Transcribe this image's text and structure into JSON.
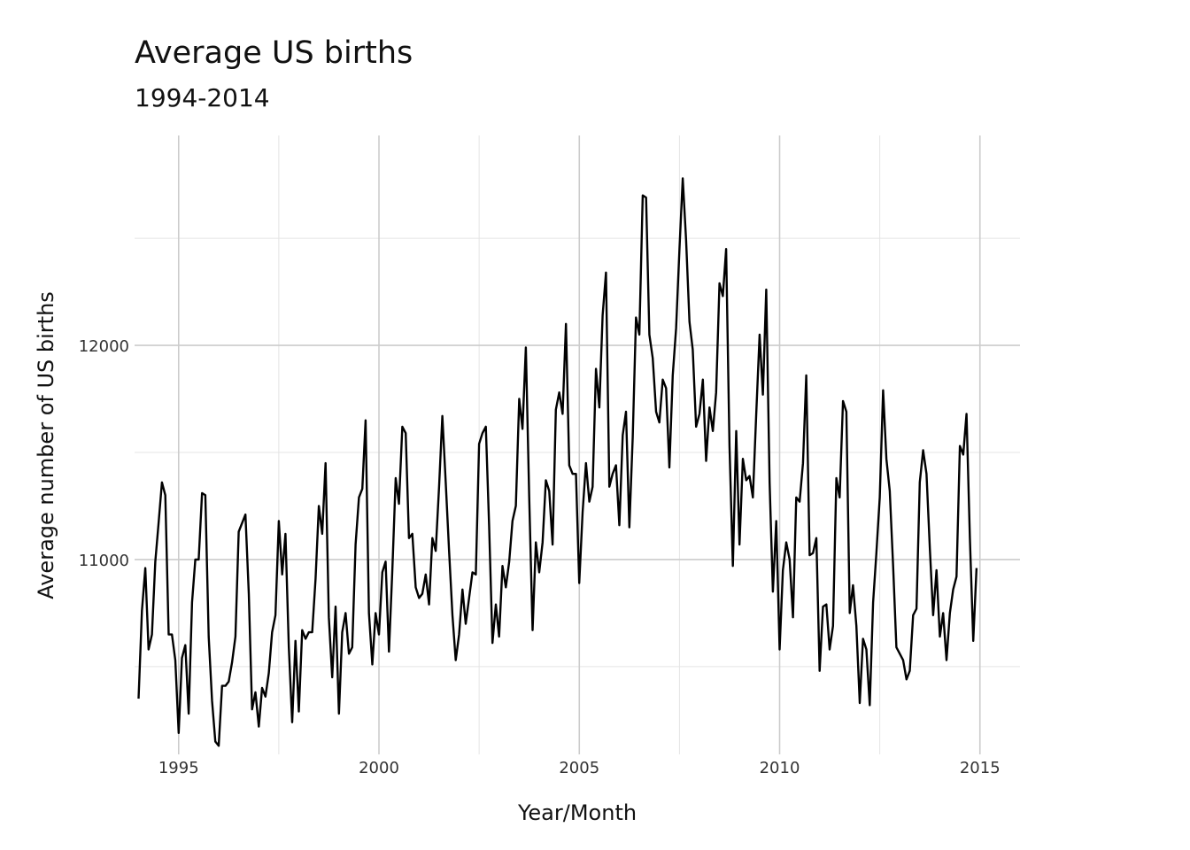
{
  "chart_data": {
    "type": "line",
    "title": "Average US births",
    "subtitle": "1994-2014",
    "xlabel": "Year/Month",
    "ylabel": "Average number of US births",
    "xlim": [
      1993.9,
      2016.0
    ],
    "ylim": [
      10090,
      12980
    ],
    "x_ticks": [
      1995,
      2000,
      2005,
      2010,
      2015
    ],
    "x_tick_labels": [
      "1995",
      "2000",
      "2005",
      "2010",
      "2015"
    ],
    "y_ticks": [
      11000,
      12000
    ],
    "y_tick_labels": [
      "11000",
      "12000"
    ],
    "y_minor_ticks": [
      10500,
      11500,
      12500
    ],
    "grid": true,
    "legend": "none",
    "line_color": "#000000",
    "series": [
      {
        "x_start": 1994.0,
        "x_step": 0.08333,
        "values": [
          10350,
          10760,
          10960,
          10580,
          10650,
          10990,
          11170,
          11360,
          11300,
          10650,
          10650,
          10530,
          10190,
          10540,
          10600,
          10280,
          10800,
          11000,
          11000,
          11310,
          11300,
          10640,
          10340,
          10150,
          10130,
          10410,
          10410,
          10430,
          10520,
          10640,
          11130,
          11170,
          11210,
          10840,
          10300,
          10380,
          10220,
          10400,
          10360,
          10470,
          10660,
          10740,
          11180,
          10930,
          11120,
          10590,
          10240,
          10620,
          10290,
          10670,
          10630,
          10660,
          10660,
          10910,
          11250,
          11120,
          11450,
          10730,
          10450,
          10780,
          10280,
          10660,
          10750,
          10560,
          10590,
          11070,
          11290,
          11330,
          11650,
          10750,
          10510,
          10750,
          10650,
          10940,
          10990,
          10570,
          10950,
          11380,
          11260,
          11620,
          11590,
          11100,
          11120,
          10870,
          10820,
          10840,
          10930,
          10790,
          11100,
          11040,
          11340,
          11670,
          11360,
          11040,
          10740,
          10530,
          10650,
          10860,
          10700,
          10820,
          10940,
          10930,
          11540,
          11590,
          11620,
          11160,
          10610,
          10790,
          10640,
          10970,
          10870,
          10990,
          11180,
          11250,
          11750,
          11610,
          11990,
          11290,
          10670,
          11080,
          10940,
          11080,
          11370,
          11320,
          11070,
          11700,
          11780,
          11680,
          12100,
          11440,
          11400,
          11400,
          10890,
          11220,
          11450,
          11270,
          11340,
          11890,
          11710,
          12140,
          12340,
          11340,
          11400,
          11440,
          11160,
          11580,
          11690,
          11150,
          11570,
          12130,
          12050,
          12700,
          12690,
          12050,
          11940,
          11690,
          11640,
          11840,
          11800,
          11430,
          11860,
          12080,
          12450,
          12780,
          12490,
          12110,
          11980,
          11620,
          11680,
          11840,
          11460,
          11710,
          11600,
          11780,
          12290,
          12230,
          12450,
          11530,
          10970,
          11600,
          11070,
          11470,
          11370,
          11390,
          11290,
          11680,
          12050,
          11770,
          12260,
          11360,
          10850,
          11180,
          10580,
          10950,
          11080,
          11000,
          10730,
          11290,
          11270,
          11450,
          11860,
          11020,
          11030,
          11100,
          10480,
          10780,
          10790,
          10580,
          10690,
          11380,
          11290,
          11740,
          11690,
          10750,
          10880,
          10690,
          10330,
          10630,
          10580,
          10320,
          10800,
          11030,
          11290,
          11790,
          11470,
          11320,
          10970,
          10590,
          10560,
          10530,
          10440,
          10480,
          10740,
          10770,
          11360,
          11510,
          11400,
          11050,
          10740,
          10950,
          10640,
          10750,
          10530,
          10750,
          10860,
          10920,
          11530,
          11490,
          11680,
          11100,
          10620,
          10960
        ]
      }
    ]
  }
}
